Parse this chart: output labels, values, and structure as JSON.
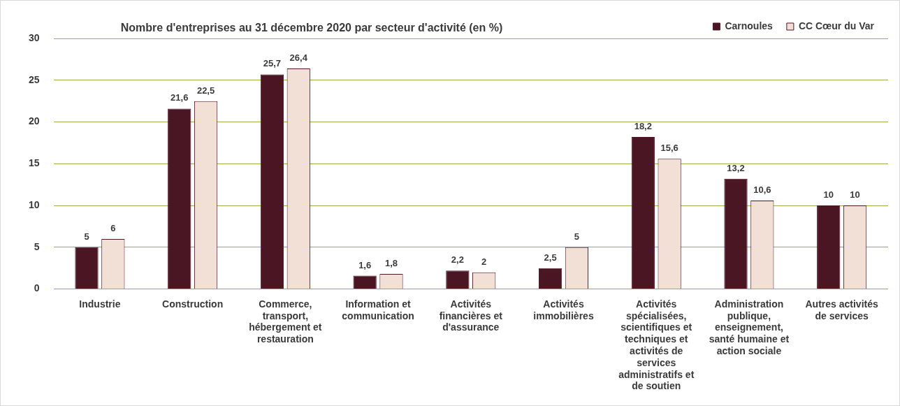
{
  "chart_data": {
    "type": "bar",
    "title": "Nombre d'entreprises au 31 décembre 2020 par secteur d'activité (en %)",
    "categories": [
      "Industrie",
      "Construction",
      "Commerce, transport, hébergement et restauration",
      "Information et communication",
      "Activités financières et d'assurance",
      "Activités immobilières",
      "Activités spécialisées, scientifiques et techniques et activités de services administratifs et de soutien",
      "Administration publique, enseignement, santé humaine et action sociale",
      "Autres activités de services"
    ],
    "series": [
      {
        "name": "Carnoules",
        "color": "#4b1624",
        "values": [
          5,
          21.6,
          25.7,
          1.6,
          2.2,
          2.5,
          18.2,
          13.2,
          10
        ],
        "value_labels": [
          "5",
          "21,6",
          "25,7",
          "1,6",
          "2,2",
          "2,5",
          "18,2",
          "13,2",
          "10"
        ]
      },
      {
        "name": "CC Cœur du Var",
        "color": "#f2dfd5",
        "values": [
          6,
          22.5,
          26.4,
          1.8,
          2,
          5,
          15.6,
          10.6,
          10
        ],
        "value_labels": [
          "6",
          "22,5",
          "26,4",
          "1,8",
          "2",
          "5",
          "15,6",
          "10,6",
          "10"
        ]
      }
    ],
    "ylim": [
      0,
      30
    ],
    "yticks": [
      0,
      5,
      10,
      15,
      20,
      25,
      30
    ],
    "grid": "y",
    "legend": "top right"
  }
}
